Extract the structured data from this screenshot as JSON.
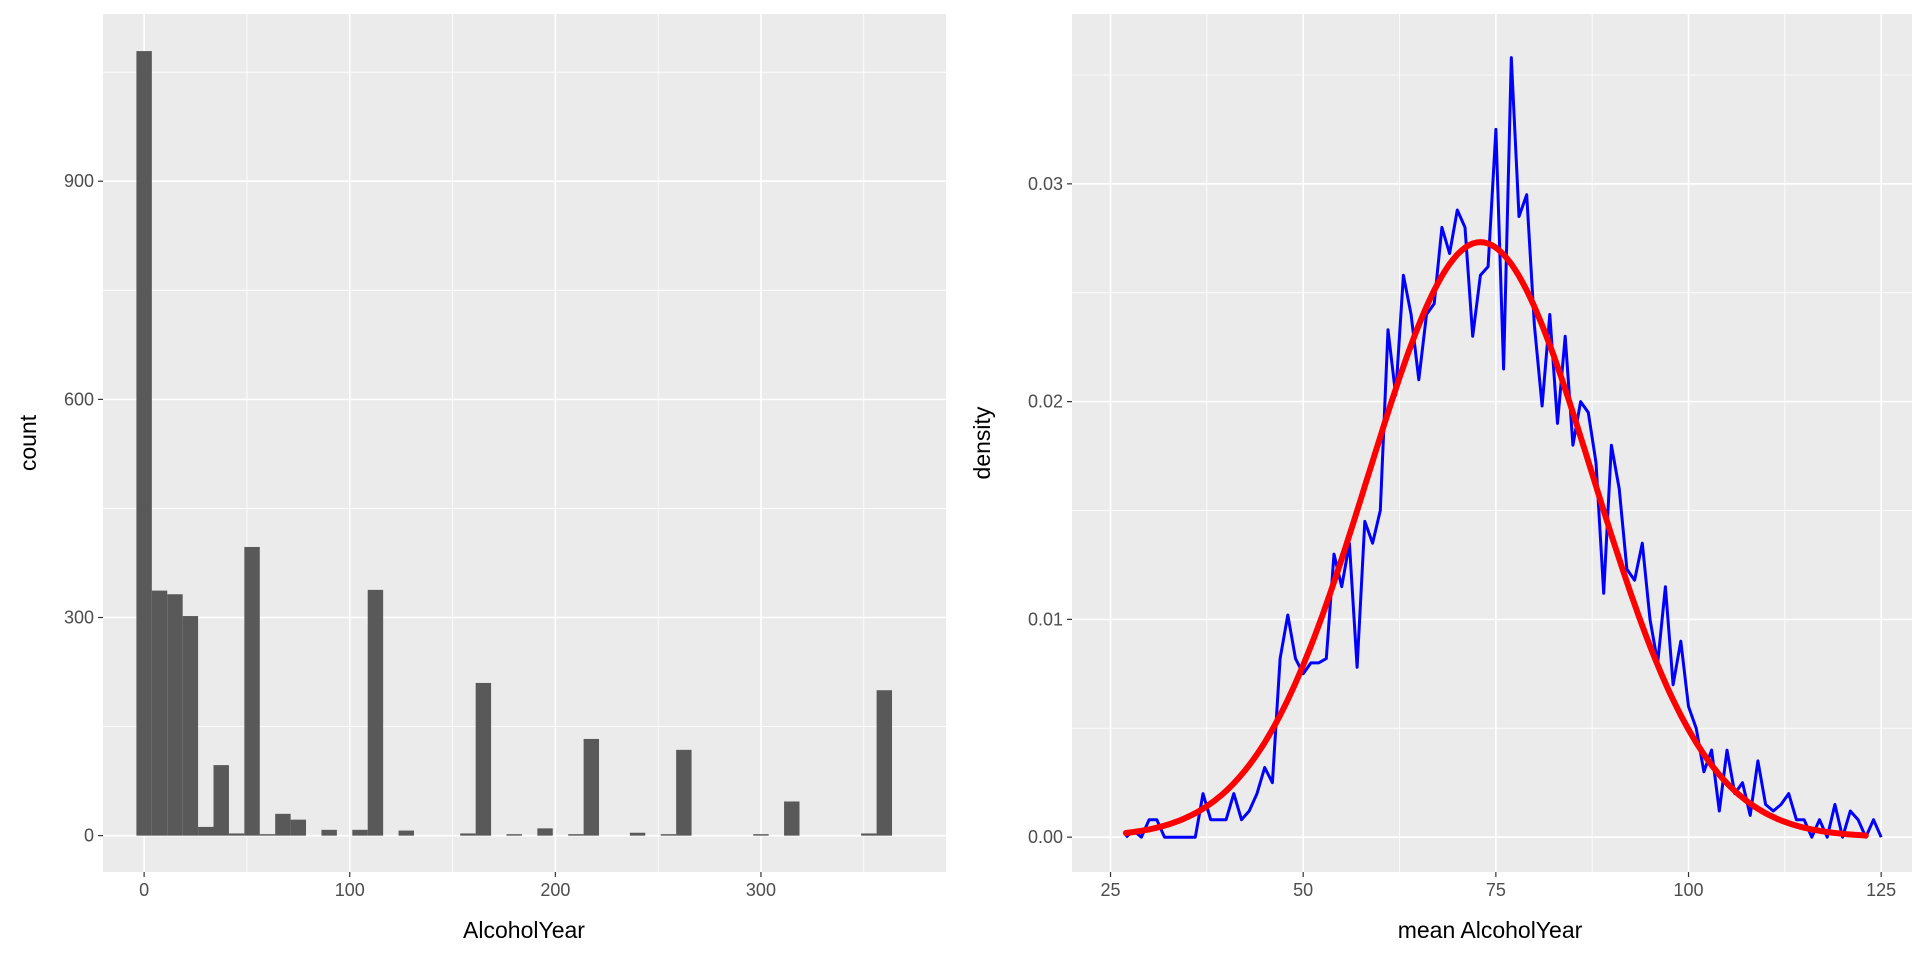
{
  "chart_data": [
    {
      "type": "bar",
      "xlabel": "AlcoholYear",
      "ylabel": "count",
      "xlim": [
        -20,
        390
      ],
      "ylim": [
        -50,
        1130
      ],
      "x_ticks": [
        0,
        100,
        200,
        300
      ],
      "y_ticks": [
        0,
        300,
        600,
        900
      ],
      "grid": true,
      "bar_width": 7.5,
      "bars": [
        {
          "x": 0,
          "y": 1079
        },
        {
          "x": 7.5,
          "y": 337
        },
        {
          "x": 15,
          "y": 332
        },
        {
          "x": 22.5,
          "y": 302
        },
        {
          "x": 30,
          "y": 12
        },
        {
          "x": 37.5,
          "y": 97
        },
        {
          "x": 45,
          "y": 3
        },
        {
          "x": 52.5,
          "y": 397
        },
        {
          "x": 60,
          "y": 2
        },
        {
          "x": 67.5,
          "y": 30
        },
        {
          "x": 75,
          "y": 22
        },
        {
          "x": 90,
          "y": 8
        },
        {
          "x": 105,
          "y": 8
        },
        {
          "x": 112.5,
          "y": 338
        },
        {
          "x": 127.5,
          "y": 7
        },
        {
          "x": 157.5,
          "y": 3
        },
        {
          "x": 165,
          "y": 210
        },
        {
          "x": 180,
          "y": 2
        },
        {
          "x": 195,
          "y": 10
        },
        {
          "x": 210,
          "y": 2
        },
        {
          "x": 217.5,
          "y": 133
        },
        {
          "x": 240,
          "y": 4
        },
        {
          "x": 255,
          "y": 2
        },
        {
          "x": 262.5,
          "y": 118
        },
        {
          "x": 300,
          "y": 2
        },
        {
          "x": 315,
          "y": 47
        },
        {
          "x": 352.5,
          "y": 3
        },
        {
          "x": 360,
          "y": 200
        }
      ]
    },
    {
      "type": "line",
      "xlabel": "mean AlcoholYear",
      "ylabel": "density",
      "xlim": [
        20,
        129
      ],
      "ylim": [
        -0.0016,
        0.0378
      ],
      "x_ticks": [
        25,
        50,
        75,
        100,
        125
      ],
      "y_ticks": [
        "0.00",
        "0.01",
        "0.02",
        "0.03"
      ],
      "grid": true,
      "series": [
        {
          "color": "#0000ff",
          "points": [
            [
              27,
              0.0
            ],
            [
              28,
              0.0003
            ],
            [
              29,
              0.0
            ],
            [
              30,
              0.0008
            ],
            [
              31,
              0.0008
            ],
            [
              32,
              0.0
            ],
            [
              33,
              0.0
            ],
            [
              34,
              0.0
            ],
            [
              35,
              0.0
            ],
            [
              36,
              0.0
            ],
            [
              37,
              0.002
            ],
            [
              38,
              0.0008
            ],
            [
              39,
              0.0008
            ],
            [
              40,
              0.0008
            ],
            [
              41,
              0.002
            ],
            [
              42,
              0.0008
            ],
            [
              43,
              0.0012
            ],
            [
              44,
              0.002
            ],
            [
              45,
              0.0032
            ],
            [
              46,
              0.0025
            ],
            [
              47,
              0.0082
            ],
            [
              48,
              0.0102
            ],
            [
              49,
              0.0082
            ],
            [
              50,
              0.0075
            ],
            [
              51,
              0.008
            ],
            [
              52,
              0.008
            ],
            [
              53,
              0.0082
            ],
            [
              54,
              0.013
            ],
            [
              55,
              0.0115
            ],
            [
              56,
              0.0135
            ],
            [
              57,
              0.0078
            ],
            [
              58,
              0.0145
            ],
            [
              59,
              0.0135
            ],
            [
              60,
              0.015
            ],
            [
              61,
              0.0233
            ],
            [
              62,
              0.0203
            ],
            [
              63,
              0.0258
            ],
            [
              64,
              0.024
            ],
            [
              65,
              0.021
            ],
            [
              66,
              0.024
            ],
            [
              67,
              0.0245
            ],
            [
              68,
              0.028
            ],
            [
              69,
              0.0268
            ],
            [
              70,
              0.0288
            ],
            [
              71,
              0.028
            ],
            [
              72,
              0.023
            ],
            [
              73,
              0.0258
            ],
            [
              74,
              0.0262
            ],
            [
              75,
              0.0325
            ],
            [
              76,
              0.0215
            ],
            [
              77,
              0.0358
            ],
            [
              78,
              0.0285
            ],
            [
              79,
              0.0295
            ],
            [
              80,
              0.0235
            ],
            [
              81,
              0.0198
            ],
            [
              82,
              0.024
            ],
            [
              83,
              0.019
            ],
            [
              84,
              0.023
            ],
            [
              85,
              0.018
            ],
            [
              86,
              0.02
            ],
            [
              87,
              0.0195
            ],
            [
              88,
              0.0172
            ],
            [
              89,
              0.0112
            ],
            [
              90,
              0.018
            ],
            [
              91,
              0.016
            ],
            [
              92,
              0.0123
            ],
            [
              93,
              0.0118
            ],
            [
              94,
              0.0135
            ],
            [
              95,
              0.01
            ],
            [
              96,
              0.008
            ],
            [
              97,
              0.0115
            ],
            [
              98,
              0.007
            ],
            [
              99,
              0.009
            ],
            [
              100,
              0.006
            ],
            [
              101,
              0.005
            ],
            [
              102,
              0.003
            ],
            [
              103,
              0.004
            ],
            [
              104,
              0.0012
            ],
            [
              105,
              0.004
            ],
            [
              106,
              0.002
            ],
            [
              107,
              0.0025
            ],
            [
              108,
              0.001
            ],
            [
              109,
              0.0035
            ],
            [
              110,
              0.0015
            ],
            [
              111,
              0.0012
            ],
            [
              112,
              0.0015
            ],
            [
              113,
              0.002
            ],
            [
              114,
              0.0008
            ],
            [
              115,
              0.0008
            ],
            [
              116,
              0.0
            ],
            [
              117,
              0.0008
            ],
            [
              118,
              0.0
            ],
            [
              119,
              0.0015
            ],
            [
              120,
              0.0
            ],
            [
              121,
              0.0012
            ],
            [
              122,
              0.0008
            ],
            [
              123,
              0.0
            ],
            [
              124,
              0.0008
            ],
            [
              125,
              0.0
            ]
          ]
        },
        {
          "color": "#ff0000",
          "type": "normal-curve",
          "mean": 73,
          "sd": 14.6,
          "x_range": [
            27,
            123
          ]
        }
      ]
    }
  ]
}
